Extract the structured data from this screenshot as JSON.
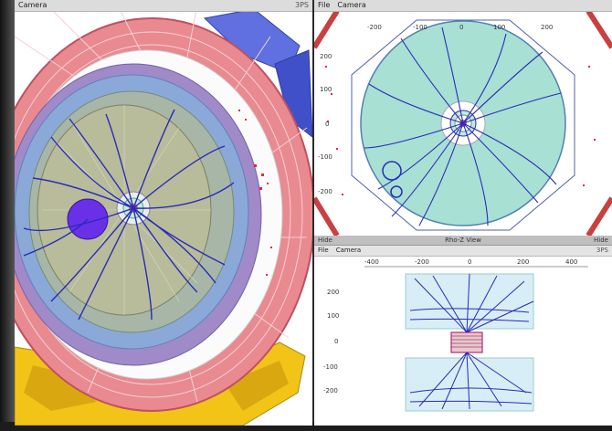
{
  "left_panel": {
    "menu": [
      "Camera"
    ],
    "menu_right": "3PS"
  },
  "top_right_panel": {
    "menu": [
      "File",
      "Camera"
    ],
    "x_ticks": [
      "-200",
      "-100",
      "0",
      "100",
      "200"
    ],
    "y_ticks": [
      "200",
      "100",
      "0",
      "-100",
      "-200"
    ]
  },
  "bottom_right_panel": {
    "title_left": "Hide",
    "title": "Rho-Z View",
    "title_right": "Hide",
    "menu": [
      "File",
      "Camera"
    ],
    "menu_right": "3PS",
    "x_ticks": [
      "-400",
      "-200",
      "0",
      "200",
      "400"
    ],
    "y_ticks": [
      "200",
      "100",
      "0",
      "-100",
      "-200"
    ]
  },
  "colors": {
    "calorimeter_red": "#e0646e",
    "muon_blue": "#5060d8",
    "tracker_teal": "#a8e0d4",
    "track_blue": "#2a2ab8",
    "yoke_yellow": "#f2c418"
  }
}
